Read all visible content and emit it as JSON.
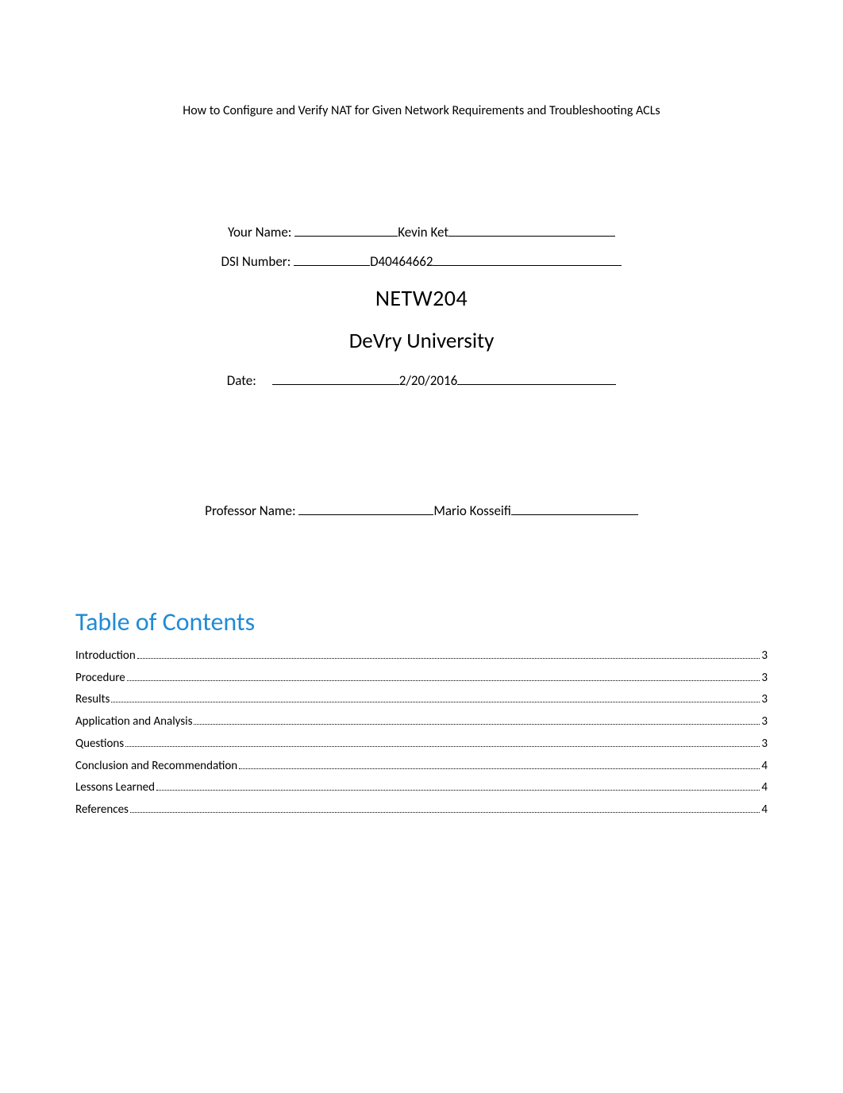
{
  "header": {
    "title": "How to Configure and Verify NAT for Given Network Requirements and Troubleshooting ACLs"
  },
  "form": {
    "name_label": "Your Name: ",
    "name_value": "Kevin Ket",
    "dsi_label": "DSI Number: ",
    "dsi_value": "D40464662",
    "course_code": "NETW204",
    "university": "DeVry University",
    "date_label": "Date:",
    "date_value": "2/20/2016",
    "professor_label": "Professor Name: ",
    "professor_value": "Mario Kosseifi"
  },
  "toc": {
    "heading": "Table of Contents",
    "heading_color": "#1f8bd6",
    "items": [
      {
        "label": "Introduction",
        "page": "3"
      },
      {
        "label": "Procedure",
        "page": "3"
      },
      {
        "label": "Results",
        "page": "3"
      },
      {
        "label": "Application and Analysis",
        "page": "3"
      },
      {
        "label": "Questions",
        "page": "3"
      },
      {
        "label": "Conclusion and Recommendation",
        "page": "4"
      },
      {
        "label": "Lessons Learned",
        "page": "4"
      },
      {
        "label": "References",
        "page": "4"
      }
    ]
  },
  "colors": {
    "text": "#000000",
    "background": "#ffffff",
    "toc_heading": "#1f8bd6"
  }
}
